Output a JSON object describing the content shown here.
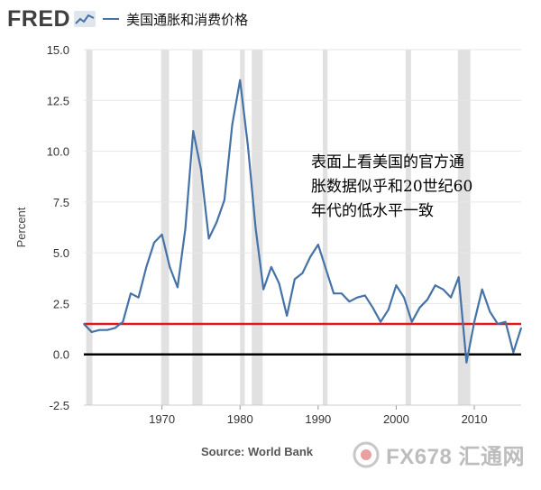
{
  "header": {
    "logo_text": "FRED",
    "legend_label": "美国通胀和消费价格",
    "line_color": "#4572a7"
  },
  "annotation_lines": [
    "表面上看美国的官方通",
    "胀数据似乎和20世纪60",
    "年代的低水平一致"
  ],
  "source_text": "Source: World Bank",
  "watermark_text": "FX678 汇通网",
  "chart_data": {
    "type": "line",
    "ylabel": "Percent",
    "xlim": [
      1960,
      2016
    ],
    "ylim": [
      -2.5,
      15.0
    ],
    "yticks": [
      -2.5,
      0.0,
      2.5,
      5.0,
      7.5,
      10.0,
      12.5,
      15.0
    ],
    "ytick_labels": [
      "-2.5",
      "0.0",
      "2.5",
      "5.0",
      "7.5",
      "10.0",
      "12.5",
      "15.0"
    ],
    "xticks": [
      1970,
      1980,
      1990,
      2000,
      2010
    ],
    "xtick_labels": [
      "1970",
      "1980",
      "1990",
      "2000",
      "2010"
    ],
    "grid": "horizontal",
    "recessions": [
      [
        1960.3,
        1961.1
      ],
      [
        1969.9,
        1970.9
      ],
      [
        1973.9,
        1975.2
      ],
      [
        1980.0,
        1980.6
      ],
      [
        1981.5,
        1982.9
      ],
      [
        1990.6,
        1991.2
      ],
      [
        2001.2,
        2001.9
      ],
      [
        2007.9,
        2009.5
      ]
    ],
    "reference_lines": [
      {
        "y": 1.5,
        "color": "#e31a1c"
      },
      {
        "y": 0.0,
        "color": "#000000"
      }
    ],
    "series": [
      {
        "x": [
          1960,
          1961,
          1962,
          1963,
          1964,
          1965,
          1966,
          1967,
          1968,
          1969,
          1970,
          1971,
          1972,
          1973,
          1974,
          1975,
          1976,
          1977,
          1978,
          1979,
          1980,
          1981,
          1982,
          1983,
          1984,
          1985,
          1986,
          1987,
          1988,
          1989,
          1990,
          1991,
          1992,
          1993,
          1994,
          1995,
          1996,
          1997,
          1998,
          1999,
          2000,
          2001,
          2002,
          2003,
          2004,
          2005,
          2006,
          2007,
          2008,
          2009,
          2010,
          2011,
          2012,
          2013,
          2014,
          2015,
          2016
        ],
        "values": [
          1.5,
          1.1,
          1.2,
          1.2,
          1.3,
          1.6,
          3.0,
          2.8,
          4.3,
          5.5,
          5.9,
          4.3,
          3.3,
          6.2,
          11.0,
          9.1,
          5.7,
          6.5,
          7.6,
          11.3,
          13.5,
          10.3,
          6.2,
          3.2,
          4.3,
          3.5,
          1.9,
          3.7,
          4.0,
          4.8,
          5.4,
          4.2,
          3.0,
          3.0,
          2.6,
          2.8,
          2.9,
          2.3,
          1.6,
          2.2,
          3.4,
          2.8,
          1.6,
          2.3,
          2.7,
          3.4,
          3.2,
          2.8,
          3.8,
          -0.4,
          1.6,
          3.2,
          2.1,
          1.5,
          1.6,
          0.1,
          1.3
        ]
      }
    ]
  }
}
